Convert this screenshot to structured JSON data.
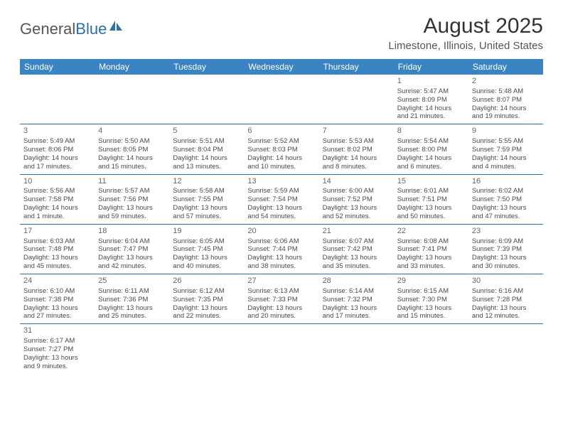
{
  "logo": {
    "part1": "General",
    "part2": "Blue"
  },
  "title": "August 2025",
  "location": "Limestone, Illinois, United States",
  "colors": {
    "header_bg": "#3b84c4",
    "header_text": "#ffffff",
    "border": "#2b6fab",
    "logo_blue": "#2b6fab",
    "logo_gray": "#555555"
  },
  "weekdays": [
    "Sunday",
    "Monday",
    "Tuesday",
    "Wednesday",
    "Thursday",
    "Friday",
    "Saturday"
  ],
  "weeks": [
    [
      null,
      null,
      null,
      null,
      null,
      {
        "n": "1",
        "sr": "Sunrise: 5:47 AM",
        "ss": "Sunset: 8:09 PM",
        "d1": "Daylight: 14 hours",
        "d2": "and 21 minutes."
      },
      {
        "n": "2",
        "sr": "Sunrise: 5:48 AM",
        "ss": "Sunset: 8:07 PM",
        "d1": "Daylight: 14 hours",
        "d2": "and 19 minutes."
      }
    ],
    [
      {
        "n": "3",
        "sr": "Sunrise: 5:49 AM",
        "ss": "Sunset: 8:06 PM",
        "d1": "Daylight: 14 hours",
        "d2": "and 17 minutes."
      },
      {
        "n": "4",
        "sr": "Sunrise: 5:50 AM",
        "ss": "Sunset: 8:05 PM",
        "d1": "Daylight: 14 hours",
        "d2": "and 15 minutes."
      },
      {
        "n": "5",
        "sr": "Sunrise: 5:51 AM",
        "ss": "Sunset: 8:04 PM",
        "d1": "Daylight: 14 hours",
        "d2": "and 13 minutes."
      },
      {
        "n": "6",
        "sr": "Sunrise: 5:52 AM",
        "ss": "Sunset: 8:03 PM",
        "d1": "Daylight: 14 hours",
        "d2": "and 10 minutes."
      },
      {
        "n": "7",
        "sr": "Sunrise: 5:53 AM",
        "ss": "Sunset: 8:02 PM",
        "d1": "Daylight: 14 hours",
        "d2": "and 8 minutes."
      },
      {
        "n": "8",
        "sr": "Sunrise: 5:54 AM",
        "ss": "Sunset: 8:00 PM",
        "d1": "Daylight: 14 hours",
        "d2": "and 6 minutes."
      },
      {
        "n": "9",
        "sr": "Sunrise: 5:55 AM",
        "ss": "Sunset: 7:59 PM",
        "d1": "Daylight: 14 hours",
        "d2": "and 4 minutes."
      }
    ],
    [
      {
        "n": "10",
        "sr": "Sunrise: 5:56 AM",
        "ss": "Sunset: 7:58 PM",
        "d1": "Daylight: 14 hours",
        "d2": "and 1 minute."
      },
      {
        "n": "11",
        "sr": "Sunrise: 5:57 AM",
        "ss": "Sunset: 7:56 PM",
        "d1": "Daylight: 13 hours",
        "d2": "and 59 minutes."
      },
      {
        "n": "12",
        "sr": "Sunrise: 5:58 AM",
        "ss": "Sunset: 7:55 PM",
        "d1": "Daylight: 13 hours",
        "d2": "and 57 minutes."
      },
      {
        "n": "13",
        "sr": "Sunrise: 5:59 AM",
        "ss": "Sunset: 7:54 PM",
        "d1": "Daylight: 13 hours",
        "d2": "and 54 minutes."
      },
      {
        "n": "14",
        "sr": "Sunrise: 6:00 AM",
        "ss": "Sunset: 7:52 PM",
        "d1": "Daylight: 13 hours",
        "d2": "and 52 minutes."
      },
      {
        "n": "15",
        "sr": "Sunrise: 6:01 AM",
        "ss": "Sunset: 7:51 PM",
        "d1": "Daylight: 13 hours",
        "d2": "and 50 minutes."
      },
      {
        "n": "16",
        "sr": "Sunrise: 6:02 AM",
        "ss": "Sunset: 7:50 PM",
        "d1": "Daylight: 13 hours",
        "d2": "and 47 minutes."
      }
    ],
    [
      {
        "n": "17",
        "sr": "Sunrise: 6:03 AM",
        "ss": "Sunset: 7:48 PM",
        "d1": "Daylight: 13 hours",
        "d2": "and 45 minutes."
      },
      {
        "n": "18",
        "sr": "Sunrise: 6:04 AM",
        "ss": "Sunset: 7:47 PM",
        "d1": "Daylight: 13 hours",
        "d2": "and 42 minutes."
      },
      {
        "n": "19",
        "sr": "Sunrise: 6:05 AM",
        "ss": "Sunset: 7:45 PM",
        "d1": "Daylight: 13 hours",
        "d2": "and 40 minutes."
      },
      {
        "n": "20",
        "sr": "Sunrise: 6:06 AM",
        "ss": "Sunset: 7:44 PM",
        "d1": "Daylight: 13 hours",
        "d2": "and 38 minutes."
      },
      {
        "n": "21",
        "sr": "Sunrise: 6:07 AM",
        "ss": "Sunset: 7:42 PM",
        "d1": "Daylight: 13 hours",
        "d2": "and 35 minutes."
      },
      {
        "n": "22",
        "sr": "Sunrise: 6:08 AM",
        "ss": "Sunset: 7:41 PM",
        "d1": "Daylight: 13 hours",
        "d2": "and 33 minutes."
      },
      {
        "n": "23",
        "sr": "Sunrise: 6:09 AM",
        "ss": "Sunset: 7:39 PM",
        "d1": "Daylight: 13 hours",
        "d2": "and 30 minutes."
      }
    ],
    [
      {
        "n": "24",
        "sr": "Sunrise: 6:10 AM",
        "ss": "Sunset: 7:38 PM",
        "d1": "Daylight: 13 hours",
        "d2": "and 27 minutes."
      },
      {
        "n": "25",
        "sr": "Sunrise: 6:11 AM",
        "ss": "Sunset: 7:36 PM",
        "d1": "Daylight: 13 hours",
        "d2": "and 25 minutes."
      },
      {
        "n": "26",
        "sr": "Sunrise: 6:12 AM",
        "ss": "Sunset: 7:35 PM",
        "d1": "Daylight: 13 hours",
        "d2": "and 22 minutes."
      },
      {
        "n": "27",
        "sr": "Sunrise: 6:13 AM",
        "ss": "Sunset: 7:33 PM",
        "d1": "Daylight: 13 hours",
        "d2": "and 20 minutes."
      },
      {
        "n": "28",
        "sr": "Sunrise: 6:14 AM",
        "ss": "Sunset: 7:32 PM",
        "d1": "Daylight: 13 hours",
        "d2": "and 17 minutes."
      },
      {
        "n": "29",
        "sr": "Sunrise: 6:15 AM",
        "ss": "Sunset: 7:30 PM",
        "d1": "Daylight: 13 hours",
        "d2": "and 15 minutes."
      },
      {
        "n": "30",
        "sr": "Sunrise: 6:16 AM",
        "ss": "Sunset: 7:28 PM",
        "d1": "Daylight: 13 hours",
        "d2": "and 12 minutes."
      }
    ],
    [
      {
        "n": "31",
        "sr": "Sunrise: 6:17 AM",
        "ss": "Sunset: 7:27 PM",
        "d1": "Daylight: 13 hours",
        "d2": "and 9 minutes."
      },
      null,
      null,
      null,
      null,
      null,
      null
    ]
  ]
}
